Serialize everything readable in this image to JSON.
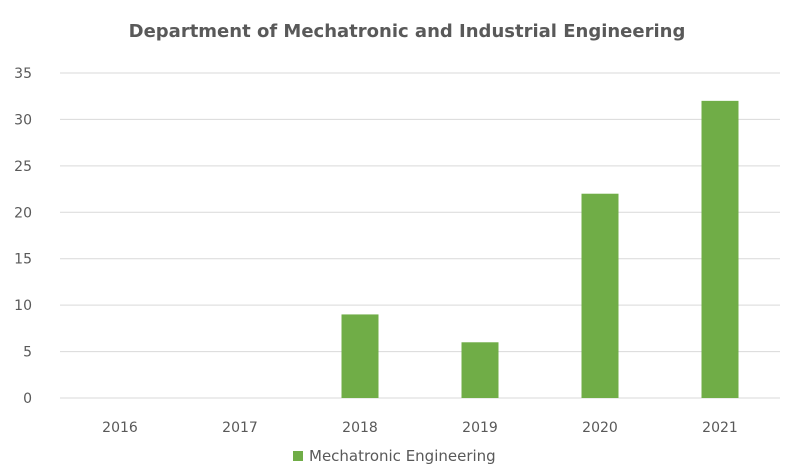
{
  "chart_data": {
    "type": "bar",
    "title": "Department of Mechatronic and Industrial Engineering",
    "categories": [
      "2016",
      "2017",
      "2018",
      "2019",
      "2020",
      "2021"
    ],
    "series": [
      {
        "name": "Mechatronic Engineering",
        "values": [
          0,
          0,
          9,
          6,
          22,
          32
        ],
        "color": "#70ad47"
      }
    ],
    "ylim": [
      0,
      35
    ],
    "yticks": [
      "0",
      "5",
      "10",
      "15",
      "20",
      "25",
      "30",
      "35"
    ],
    "grid": true,
    "legend": "bottom"
  }
}
